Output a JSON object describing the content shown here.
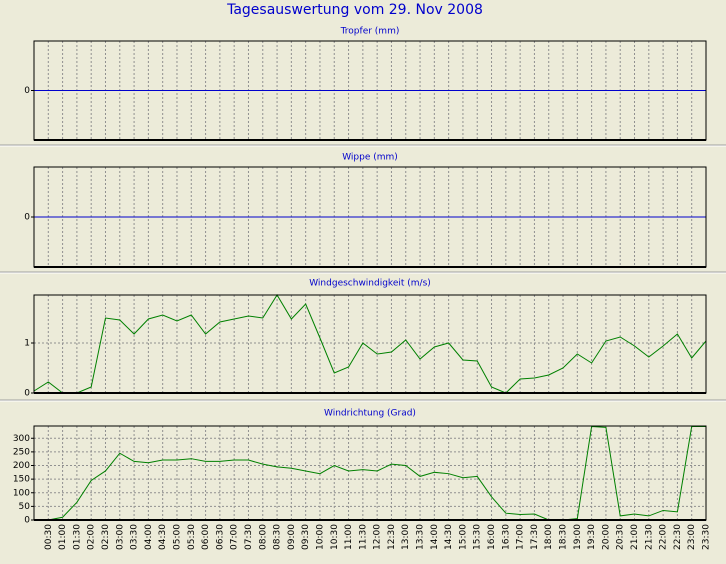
{
  "title": "Tagesauswertung vom 29. Nov 2008",
  "chart_data": [
    {
      "type": "line",
      "title": "Tropfer (mm)",
      "color": "#0000cc",
      "ylim": [
        -1,
        1
      ],
      "yticks": [
        0
      ],
      "grid": true,
      "values": [
        0,
        0,
        0,
        0,
        0,
        0,
        0,
        0,
        0,
        0,
        0,
        0,
        0,
        0,
        0,
        0,
        0,
        0,
        0,
        0,
        0,
        0,
        0,
        0,
        0,
        0,
        0,
        0,
        0,
        0,
        0,
        0,
        0,
        0,
        0,
        0,
        0,
        0,
        0,
        0,
        0,
        0,
        0,
        0,
        0,
        0,
        0,
        0
      ]
    },
    {
      "type": "line",
      "title": "Wippe (mm)",
      "color": "#0000cc",
      "ylim": [
        -1,
        1
      ],
      "yticks": [
        0
      ],
      "grid": true,
      "values": [
        0,
        0,
        0,
        0,
        0,
        0,
        0,
        0,
        0,
        0,
        0,
        0,
        0,
        0,
        0,
        0,
        0,
        0,
        0,
        0,
        0,
        0,
        0,
        0,
        0,
        0,
        0,
        0,
        0,
        0,
        0,
        0,
        0,
        0,
        0,
        0,
        0,
        0,
        0,
        0,
        0,
        0,
        0,
        0,
        0,
        0,
        0,
        0
      ]
    },
    {
      "type": "line",
      "title": "Windgeschwindigkeit (m/s)",
      "color": "#008000",
      "ylim": [
        0,
        1.96
      ],
      "yticks": [
        0,
        1
      ],
      "grid": true,
      "values": [
        0.04,
        0.22,
        0,
        0,
        0.12,
        1.5,
        1.46,
        1.18,
        1.48,
        1.56,
        1.44,
        1.56,
        1.18,
        1.42,
        1.48,
        1.54,
        1.5,
        1.96,
        1.48,
        1.78,
        1.1,
        0.4,
        0.52,
        1.0,
        0.78,
        0.82,
        1.06,
        0.68,
        0.92,
        1.0,
        0.66,
        0.64,
        0.12,
        0,
        0.28,
        0.3,
        0.36,
        0.5,
        0.78,
        0.6,
        1.04,
        1.12,
        0.94,
        0.72,
        0.94,
        1.18,
        0.7,
        1.04
      ]
    },
    {
      "type": "line",
      "title": "Windrichtung (Grad)",
      "color": "#008000",
      "ylim": [
        0,
        345
      ],
      "yticks": [
        0,
        50,
        100,
        150,
        200,
        250,
        300
      ],
      "grid": true,
      "values": [
        0,
        0,
        10,
        65,
        145,
        180,
        245,
        215,
        210,
        220,
        220,
        225,
        215,
        215,
        220,
        220,
        205,
        195,
        190,
        180,
        170,
        200,
        180,
        185,
        180,
        205,
        200,
        160,
        175,
        170,
        155,
        160,
        85,
        25,
        20,
        22,
        0,
        0,
        5,
        343,
        340,
        15,
        22,
        15,
        35,
        30,
        343,
        343
      ],
      "categories": [
        null,
        "00:30",
        "01:00",
        "01:30",
        "02:00",
        "02:30",
        "03:00",
        "03:30",
        "04:00",
        "04:30",
        "05:00",
        "05:30",
        "06:00",
        "06:30",
        "07:00",
        "07:30",
        "08:00",
        "08:30",
        "09:00",
        "09:30",
        "10:00",
        "10:30",
        "11:00",
        "11:30",
        "12:00",
        "12:30",
        "13:00",
        "13:30",
        "14:00",
        "14:30",
        "15:00",
        "15:30",
        "16:00",
        "16:30",
        "17:00",
        "17:30",
        "18:00",
        "18:30",
        "19:00",
        "19:30",
        "20:00",
        "20:30",
        "21:00",
        "21:30",
        "22:00",
        "22:30",
        "23:00",
        "23:30"
      ]
    }
  ]
}
